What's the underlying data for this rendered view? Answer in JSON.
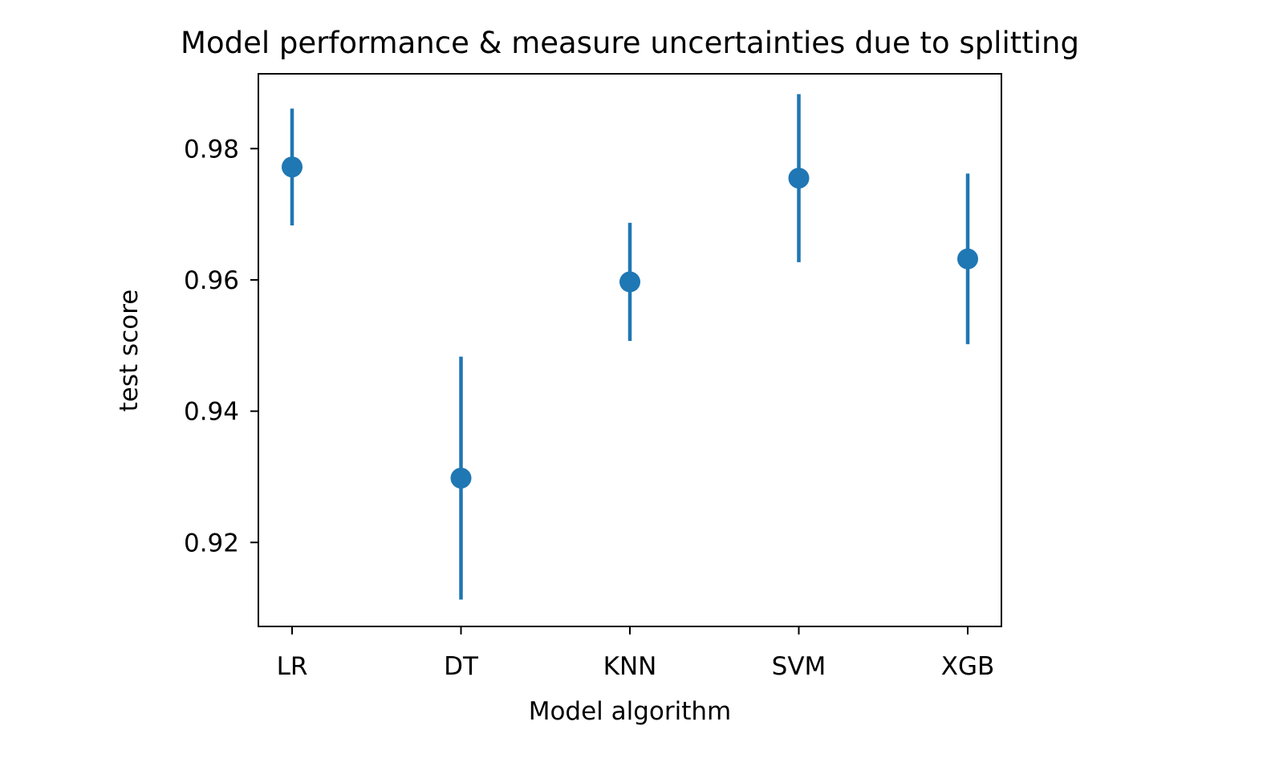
{
  "chart_data": {
    "type": "scatter",
    "title": "Model performance & measure uncertainties due to splitting",
    "xlabel": "Model algorithm",
    "ylabel": "test score",
    "categories": [
      "LR",
      "DT",
      "KNN",
      "SVM",
      "XGB"
    ],
    "values": [
      0.9772,
      0.9298,
      0.9597,
      0.9755,
      0.9632
    ],
    "error": [
      0.0089,
      0.0185,
      0.009,
      0.0128,
      0.013
    ],
    "yticks": [
      0.92,
      0.94,
      0.96,
      0.98
    ],
    "ytick_labels": [
      "0.92",
      "0.94",
      "0.96",
      "0.98"
    ],
    "ylim": [
      0.9072,
      0.9914
    ],
    "grid": false,
    "legend": "none",
    "color": "#1f77b4"
  }
}
